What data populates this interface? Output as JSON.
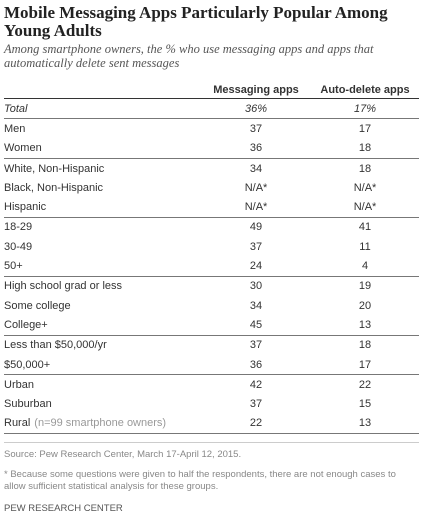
{
  "title": "Mobile Messaging Apps Particularly Popular Among Young Adults",
  "subtitle": "Among smartphone owners, the % who use messaging apps and apps that automatically delete sent messages",
  "table": {
    "columns": [
      "Messaging apps",
      "Auto-delete apps"
    ],
    "groups": [
      [
        {
          "label": "Total",
          "values": [
            "36%",
            "17%"
          ]
        }
      ],
      [
        {
          "label": "Men",
          "values": [
            "37",
            "17"
          ]
        },
        {
          "label": "Women",
          "values": [
            "36",
            "18"
          ]
        }
      ],
      [
        {
          "label": "White, Non-Hispanic",
          "values": [
            "34",
            "18"
          ]
        },
        {
          "label": "Black, Non-Hispanic",
          "values": [
            "N/A*",
            "N/A*"
          ]
        },
        {
          "label": "Hispanic",
          "values": [
            "N/A*",
            "N/A*"
          ]
        }
      ],
      [
        {
          "label": "18-29",
          "values": [
            "49",
            "41"
          ]
        },
        {
          "label": "30-49",
          "values": [
            "37",
            "11"
          ]
        },
        {
          "label": "50+",
          "values": [
            "24",
            "4"
          ]
        }
      ],
      [
        {
          "label": "High school grad or less",
          "values": [
            "30",
            "19"
          ]
        },
        {
          "label": "Some college",
          "values": [
            "34",
            "20"
          ]
        },
        {
          "label": "College+",
          "values": [
            "45",
            "13"
          ]
        }
      ],
      [
        {
          "label": "Less than $50,000/yr",
          "values": [
            "37",
            "18"
          ]
        },
        {
          "label": "$50,000+",
          "values": [
            "36",
            "17"
          ]
        }
      ],
      [
        {
          "label": "Urban",
          "values": [
            "42",
            "22"
          ]
        },
        {
          "label": "Suburban",
          "values": [
            "37",
            "15"
          ]
        },
        {
          "label": "Rural",
          "note": "(n=99 smartphone owners)",
          "values": [
            "22",
            "13"
          ]
        }
      ]
    ]
  },
  "source": "Source: Pew Research Center, March 17-April 12, 2015.",
  "footnote": "* Because some questions were given to half the respondents, there are not enough cases to allow sufficient statistical analysis for these groups.",
  "credit": "PEW RESEARCH CENTER"
}
